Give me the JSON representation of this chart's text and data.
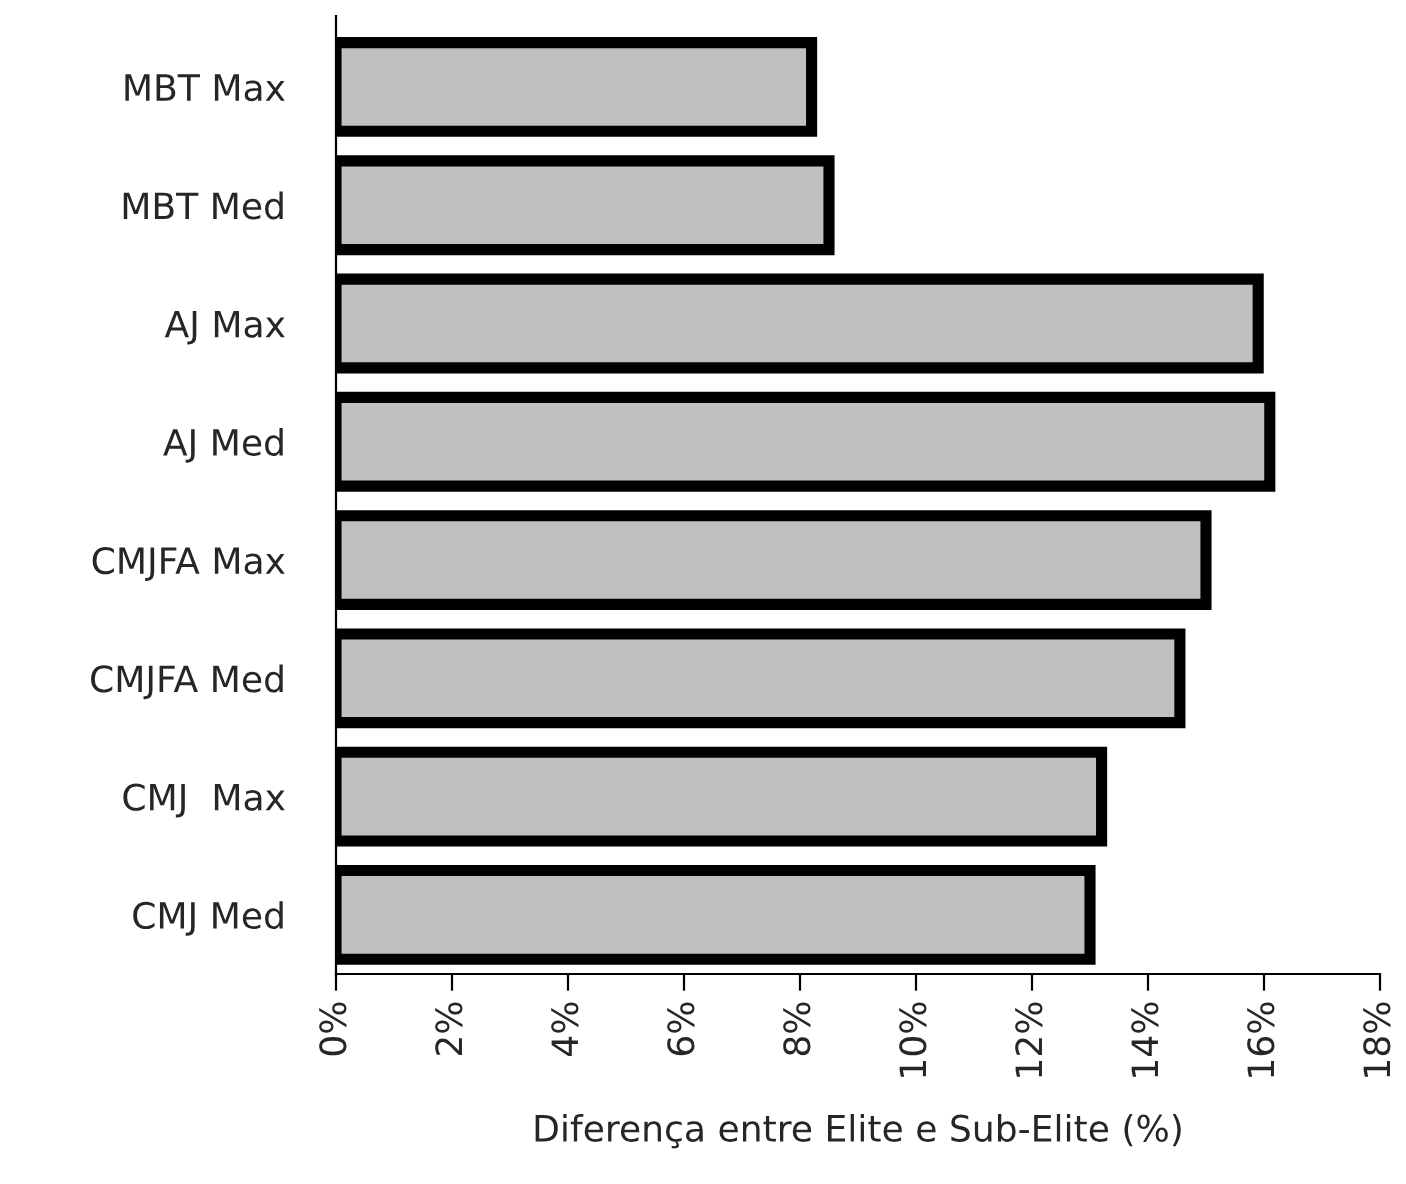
{
  "chart_data": {
    "type": "bar",
    "orientation": "horizontal",
    "xlabel": "Diferença entre Elite e Sub-Elite (%)",
    "categories": [
      "MBT Max",
      "MBT Med",
      "AJ Max",
      "AJ Med",
      "CMJFA Max",
      "CMJFA Med",
      "CMJ  Max",
      "CMJ Med"
    ],
    "values": [
      8.2,
      8.5,
      15.9,
      16.1,
      15.0,
      14.55,
      13.2,
      13.0
    ],
    "color": "#c0c0c0",
    "xlim": [
      0,
      18
    ],
    "xticks": [
      {
        "value": 0,
        "label": "0%"
      },
      {
        "value": 2,
        "label": "2%"
      },
      {
        "value": 4,
        "label": "4%"
      },
      {
        "value": 6,
        "label": "6%"
      },
      {
        "value": 8,
        "label": "8%"
      },
      {
        "value": 10,
        "label": "10%"
      },
      {
        "value": 12,
        "label": "12%"
      },
      {
        "value": 14,
        "label": "14%"
      },
      {
        "value": 16,
        "label": "16%"
      },
      {
        "value": 18,
        "label": "18%"
      }
    ],
    "grid": false,
    "legend": false
  }
}
